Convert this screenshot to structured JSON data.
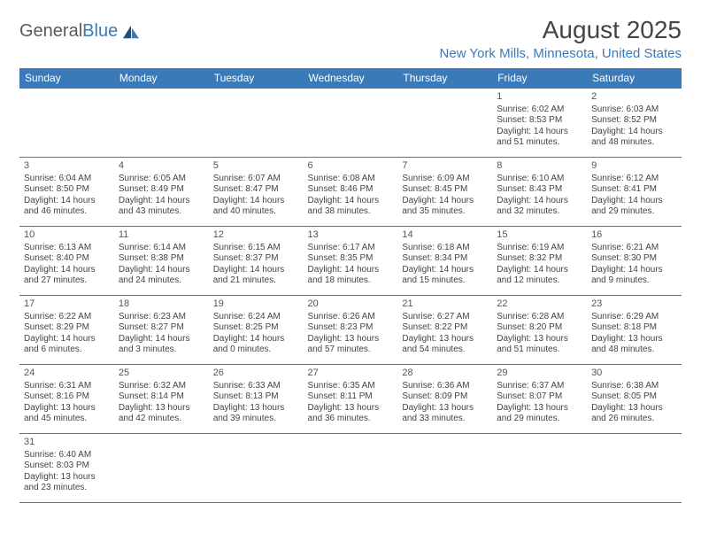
{
  "brand": {
    "name_a": "General",
    "name_b": "Blue"
  },
  "header": {
    "title": "August 2025",
    "location": "New York Mills, Minnesota, United States"
  },
  "colors": {
    "accent": "#3a7ab8",
    "text": "#444444",
    "bg": "#ffffff"
  },
  "weekdays": [
    "Sunday",
    "Monday",
    "Tuesday",
    "Wednesday",
    "Thursday",
    "Friday",
    "Saturday"
  ],
  "calendar": {
    "type": "table",
    "columns": 7,
    "rows": 6,
    "first_weekday_index": 5,
    "days": [
      {
        "n": 1,
        "sunrise": "6:02 AM",
        "sunset": "8:53 PM",
        "dl_h": 14,
        "dl_m": 51
      },
      {
        "n": 2,
        "sunrise": "6:03 AM",
        "sunset": "8:52 PM",
        "dl_h": 14,
        "dl_m": 48
      },
      {
        "n": 3,
        "sunrise": "6:04 AM",
        "sunset": "8:50 PM",
        "dl_h": 14,
        "dl_m": 46
      },
      {
        "n": 4,
        "sunrise": "6:05 AM",
        "sunset": "8:49 PM",
        "dl_h": 14,
        "dl_m": 43
      },
      {
        "n": 5,
        "sunrise": "6:07 AM",
        "sunset": "8:47 PM",
        "dl_h": 14,
        "dl_m": 40
      },
      {
        "n": 6,
        "sunrise": "6:08 AM",
        "sunset": "8:46 PM",
        "dl_h": 14,
        "dl_m": 38
      },
      {
        "n": 7,
        "sunrise": "6:09 AM",
        "sunset": "8:45 PM",
        "dl_h": 14,
        "dl_m": 35
      },
      {
        "n": 8,
        "sunrise": "6:10 AM",
        "sunset": "8:43 PM",
        "dl_h": 14,
        "dl_m": 32
      },
      {
        "n": 9,
        "sunrise": "6:12 AM",
        "sunset": "8:41 PM",
        "dl_h": 14,
        "dl_m": 29
      },
      {
        "n": 10,
        "sunrise": "6:13 AM",
        "sunset": "8:40 PM",
        "dl_h": 14,
        "dl_m": 27
      },
      {
        "n": 11,
        "sunrise": "6:14 AM",
        "sunset": "8:38 PM",
        "dl_h": 14,
        "dl_m": 24
      },
      {
        "n": 12,
        "sunrise": "6:15 AM",
        "sunset": "8:37 PM",
        "dl_h": 14,
        "dl_m": 21
      },
      {
        "n": 13,
        "sunrise": "6:17 AM",
        "sunset": "8:35 PM",
        "dl_h": 14,
        "dl_m": 18
      },
      {
        "n": 14,
        "sunrise": "6:18 AM",
        "sunset": "8:34 PM",
        "dl_h": 14,
        "dl_m": 15
      },
      {
        "n": 15,
        "sunrise": "6:19 AM",
        "sunset": "8:32 PM",
        "dl_h": 14,
        "dl_m": 12
      },
      {
        "n": 16,
        "sunrise": "6:21 AM",
        "sunset": "8:30 PM",
        "dl_h": 14,
        "dl_m": 9
      },
      {
        "n": 17,
        "sunrise": "6:22 AM",
        "sunset": "8:29 PM",
        "dl_h": 14,
        "dl_m": 6
      },
      {
        "n": 18,
        "sunrise": "6:23 AM",
        "sunset": "8:27 PM",
        "dl_h": 14,
        "dl_m": 3
      },
      {
        "n": 19,
        "sunrise": "6:24 AM",
        "sunset": "8:25 PM",
        "dl_h": 14,
        "dl_m": 0
      },
      {
        "n": 20,
        "sunrise": "6:26 AM",
        "sunset": "8:23 PM",
        "dl_h": 13,
        "dl_m": 57
      },
      {
        "n": 21,
        "sunrise": "6:27 AM",
        "sunset": "8:22 PM",
        "dl_h": 13,
        "dl_m": 54
      },
      {
        "n": 22,
        "sunrise": "6:28 AM",
        "sunset": "8:20 PM",
        "dl_h": 13,
        "dl_m": 51
      },
      {
        "n": 23,
        "sunrise": "6:29 AM",
        "sunset": "8:18 PM",
        "dl_h": 13,
        "dl_m": 48
      },
      {
        "n": 24,
        "sunrise": "6:31 AM",
        "sunset": "8:16 PM",
        "dl_h": 13,
        "dl_m": 45
      },
      {
        "n": 25,
        "sunrise": "6:32 AM",
        "sunset": "8:14 PM",
        "dl_h": 13,
        "dl_m": 42
      },
      {
        "n": 26,
        "sunrise": "6:33 AM",
        "sunset": "8:13 PM",
        "dl_h": 13,
        "dl_m": 39
      },
      {
        "n": 27,
        "sunrise": "6:35 AM",
        "sunset": "8:11 PM",
        "dl_h": 13,
        "dl_m": 36
      },
      {
        "n": 28,
        "sunrise": "6:36 AM",
        "sunset": "8:09 PM",
        "dl_h": 13,
        "dl_m": 33
      },
      {
        "n": 29,
        "sunrise": "6:37 AM",
        "sunset": "8:07 PM",
        "dl_h": 13,
        "dl_m": 29
      },
      {
        "n": 30,
        "sunrise": "6:38 AM",
        "sunset": "8:05 PM",
        "dl_h": 13,
        "dl_m": 26
      },
      {
        "n": 31,
        "sunrise": "6:40 AM",
        "sunset": "8:03 PM",
        "dl_h": 13,
        "dl_m": 23
      }
    ]
  },
  "labels": {
    "sunrise": "Sunrise:",
    "sunset": "Sunset:",
    "daylight": "Daylight:"
  }
}
